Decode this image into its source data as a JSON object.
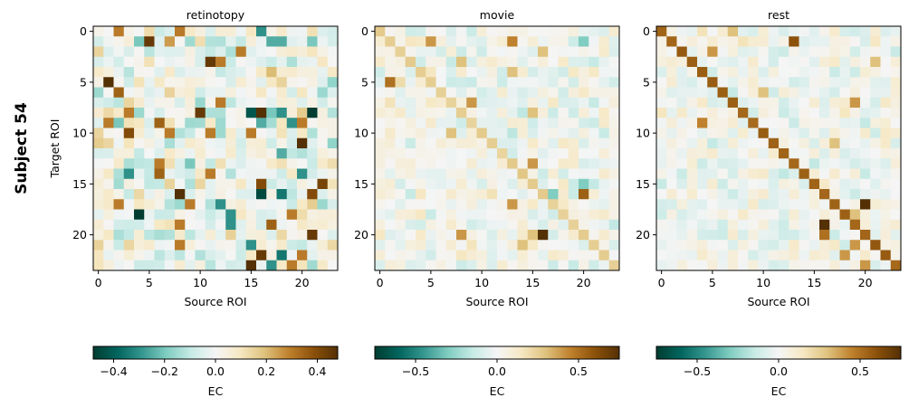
{
  "figure": {
    "suptitle": "Subject 54"
  },
  "colormap": {
    "name": "BrBG",
    "stops": [
      "#003c30",
      "#01665e",
      "#35978f",
      "#80cdc1",
      "#c7eae5",
      "#f5f5f5",
      "#f6e8c3",
      "#dfc27d",
      "#bf812d",
      "#8c510a",
      "#543005"
    ]
  },
  "chart_data": [
    {
      "type": "heatmap",
      "title": "retinotopy",
      "xlabel": "Source ROI",
      "ylabel": "Target ROI",
      "n": 24,
      "x_ticks": [
        0,
        5,
        10,
        15,
        20
      ],
      "y_ticks": [
        0,
        5,
        10,
        15,
        20
      ],
      "vmin": -0.48,
      "vmax": 0.48,
      "colorbar_label": "EC",
      "colorbar_ticks": [
        -0.4,
        -0.2,
        0.0,
        0.2,
        0.4
      ],
      "colorbar_tick_labels": [
        "−0.4",
        "−0.2",
        "0.0",
        "0.2",
        "0.4"
      ],
      "seed": 541,
      "noise_sd": 0.11,
      "diag_value": 0,
      "cells": [
        [
          0,
          2,
          0.3
        ],
        [
          0,
          8,
          0.3
        ],
        [
          0,
          16,
          -0.3
        ],
        [
          1,
          4,
          -0.2
        ],
        [
          1,
          5,
          0.45
        ],
        [
          1,
          7,
          0.25
        ],
        [
          1,
          9,
          -0.15
        ],
        [
          1,
          14,
          -0.1
        ],
        [
          1,
          17,
          -0.25
        ],
        [
          1,
          18,
          -0.25
        ],
        [
          1,
          21,
          -0.2
        ],
        [
          2,
          14,
          0.3
        ],
        [
          3,
          11,
          0.45
        ],
        [
          3,
          12,
          0.3
        ],
        [
          4,
          17,
          0.2
        ],
        [
          5,
          1,
          0.48
        ],
        [
          6,
          2,
          0.35
        ],
        [
          7,
          12,
          0.3
        ],
        [
          8,
          3,
          0.3
        ],
        [
          8,
          10,
          0.45
        ],
        [
          8,
          15,
          -0.42
        ],
        [
          8,
          16,
          0.48
        ],
        [
          8,
          17,
          -0.2
        ],
        [
          8,
          18,
          -0.3
        ],
        [
          8,
          21,
          -0.48
        ],
        [
          9,
          1,
          0.3
        ],
        [
          9,
          2,
          -0.2
        ],
        [
          9,
          6,
          0.35
        ],
        [
          9,
          9,
          -0.15
        ],
        [
          9,
          16,
          -0.25
        ],
        [
          9,
          19,
          -0.3
        ],
        [
          9,
          20,
          0.3
        ],
        [
          10,
          3,
          0.4
        ],
        [
          10,
          7,
          0.3
        ],
        [
          10,
          11,
          0.3
        ],
        [
          10,
          15,
          0.3
        ],
        [
          11,
          20,
          0.48
        ],
        [
          12,
          18,
          -0.25
        ],
        [
          13,
          6,
          0.3
        ],
        [
          13,
          9,
          -0.2
        ],
        [
          14,
          3,
          -0.3
        ],
        [
          14,
          6,
          0.35
        ],
        [
          14,
          11,
          0.3
        ],
        [
          14,
          20,
          -0.3
        ],
        [
          15,
          16,
          0.4
        ],
        [
          15,
          22,
          0.42
        ],
        [
          16,
          8,
          0.48
        ],
        [
          16,
          16,
          -0.45
        ],
        [
          16,
          18,
          -0.35
        ],
        [
          16,
          21,
          0.4
        ],
        [
          17,
          2,
          0.3
        ],
        [
          17,
          9,
          0.3
        ],
        [
          17,
          12,
          -0.3
        ],
        [
          18,
          4,
          -0.48
        ],
        [
          18,
          13,
          -0.3
        ],
        [
          18,
          19,
          0.3
        ],
        [
          19,
          8,
          0.3
        ],
        [
          19,
          13,
          -0.3
        ],
        [
          19,
          17,
          0.35
        ],
        [
          20,
          21,
          0.45
        ],
        [
          21,
          8,
          0.3
        ],
        [
          21,
          15,
          -0.3
        ],
        [
          22,
          16,
          0.45
        ],
        [
          22,
          18,
          -0.35
        ],
        [
          22,
          20,
          0.3
        ],
        [
          23,
          15,
          0.48
        ],
        [
          23,
          17,
          -0.3
        ],
        [
          23,
          19,
          0.3
        ]
      ]
    },
    {
      "type": "heatmap",
      "title": "movie",
      "xlabel": "Source ROI",
      "ylabel": "",
      "n": 24,
      "x_ticks": [
        0,
        5,
        10,
        15,
        20
      ],
      "y_ticks": [
        0,
        5,
        10,
        15,
        20
      ],
      "vmin": -0.75,
      "vmax": 0.75,
      "colorbar_label": "EC",
      "colorbar_ticks": [
        -0.5,
        0.0,
        0.5
      ],
      "colorbar_tick_labels": [
        "−0.5",
        "0.0",
        "0.5"
      ],
      "seed": 542,
      "noise_sd": 0.11,
      "diag_value": 0.25,
      "cells": [
        [
          1,
          5,
          0.4
        ],
        [
          1,
          13,
          0.45
        ],
        [
          1,
          20,
          -0.3
        ],
        [
          2,
          16,
          0.3
        ],
        [
          3,
          8,
          0.3
        ],
        [
          4,
          13,
          0.3
        ],
        [
          5,
          1,
          0.5
        ],
        [
          5,
          2,
          0.2
        ],
        [
          7,
          9,
          0.4
        ],
        [
          8,
          15,
          0.3
        ],
        [
          10,
          7,
          0.3
        ],
        [
          13,
          15,
          0.4
        ],
        [
          15,
          20,
          -0.3
        ],
        [
          16,
          17,
          -0.3
        ],
        [
          16,
          20,
          0.55
        ],
        [
          17,
          13,
          0.4
        ],
        [
          20,
          8,
          0.4
        ],
        [
          20,
          16,
          0.75
        ],
        [
          20,
          15,
          0.3
        ],
        [
          21,
          14,
          0.3
        ]
      ]
    },
    {
      "type": "heatmap",
      "title": "rest",
      "xlabel": "Source ROI",
      "ylabel": "",
      "n": 24,
      "x_ticks": [
        0,
        5,
        10,
        15,
        20
      ],
      "y_ticks": [
        0,
        5,
        10,
        15,
        20
      ],
      "vmin": -0.75,
      "vmax": 0.75,
      "colorbar_label": "EC",
      "colorbar_ticks": [
        -0.5,
        0.0,
        0.5
      ],
      "colorbar_tick_labels": [
        "−0.5",
        "0.0",
        "0.5"
      ],
      "seed": 543,
      "noise_sd": 0.11,
      "diag_value": 0.55,
      "cells": [
        [
          0,
          7,
          0.3
        ],
        [
          1,
          13,
          0.6
        ],
        [
          2,
          5,
          0.4
        ],
        [
          3,
          21,
          0.3
        ],
        [
          6,
          10,
          0.3
        ],
        [
          7,
          19,
          0.4
        ],
        [
          9,
          4,
          0.45
        ],
        [
          11,
          17,
          0.3
        ],
        [
          17,
          20,
          0.75
        ],
        [
          18,
          19,
          0.3
        ],
        [
          19,
          16,
          0.75
        ],
        [
          20,
          16,
          0.5
        ],
        [
          21,
          19,
          0.4
        ],
        [
          22,
          18,
          0.4
        ],
        [
          23,
          20,
          0.4
        ]
      ]
    }
  ]
}
